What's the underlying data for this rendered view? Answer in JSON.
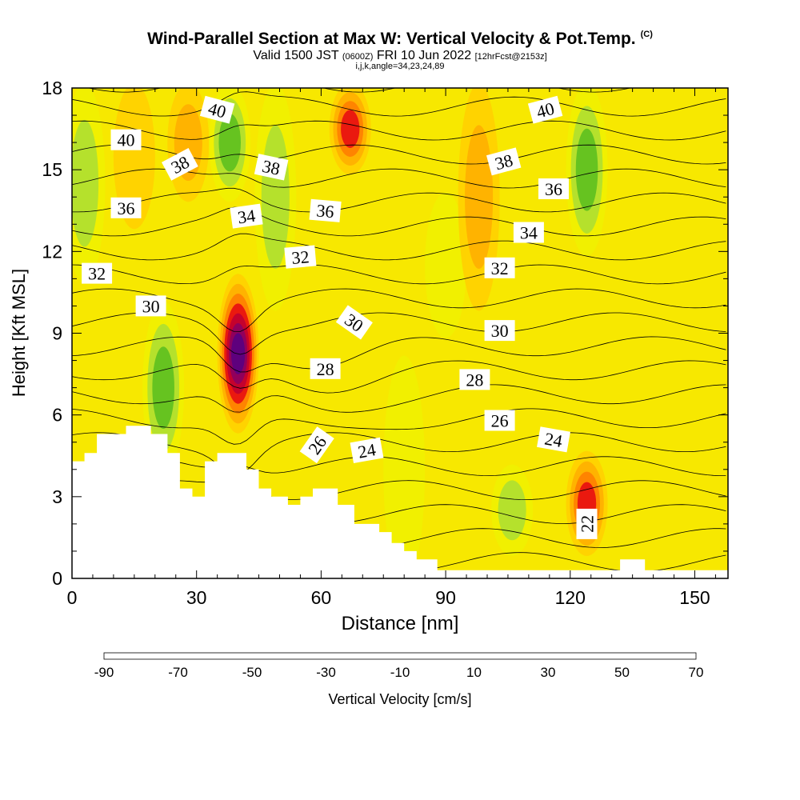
{
  "title": {
    "main": "Wind-Parallel Section at Max W: Vertical Velocity & Pot.Temp.",
    "corner": "(C)",
    "sub_a": "Valid 1500 JST",
    "sub_b": "(0600Z)",
    "sub_c": "FRI 10 Jun 2022",
    "sub_d": "[12hrFcst@2153z]",
    "indices": "i,j,k,angle=34,23,24,89"
  },
  "chart_data": {
    "type": "heatmap",
    "xlabel": "Distance [nm]",
    "ylabel": "Height [Kft MSL]",
    "xlim": [
      0,
      158
    ],
    "ylim": [
      0,
      18
    ],
    "xticks": [
      0,
      30,
      60,
      90,
      120,
      150
    ],
    "yticks": [
      0,
      3,
      6,
      9,
      12,
      15,
      18
    ],
    "colorbar": {
      "label": "Vertical Velocity [cm/s]",
      "ticks": [
        -90,
        -70,
        -50,
        -30,
        -10,
        10,
        30,
        50,
        70
      ],
      "range": [
        -90,
        70
      ],
      "colors": [
        "#0000ff",
        "#0050ff",
        "#00a0ff",
        "#00d8ff",
        "#00f0c0",
        "#00c850",
        "#10a010",
        "#60c020",
        "#b0e030",
        "#f0f000",
        "#ffd000",
        "#ffb000",
        "#ff8000",
        "#ff4000",
        "#e81010",
        "#c00030",
        "#8c0060",
        "#5a0080"
      ]
    },
    "velocity_bands": [
      {
        "x": 3,
        "y0": 11,
        "y1": 18,
        "w": -20
      },
      {
        "x": 15,
        "y0": 13,
        "y1": 18,
        "w": 12
      },
      {
        "x": 22,
        "y0": 4,
        "y1": 10,
        "w": -30
      },
      {
        "x": 28,
        "y0": 14,
        "y1": 18,
        "w": 22
      },
      {
        "x": 38,
        "y0": 14,
        "y1": 18,
        "w": -25
      },
      {
        "x": 40,
        "y0": 5.5,
        "y1": 11,
        "w": 68
      },
      {
        "x": 49,
        "y0": 10,
        "y1": 18,
        "w": -18
      },
      {
        "x": 67,
        "y0": 15,
        "y1": 18,
        "w": 35
      },
      {
        "x": 80,
        "y0": 0,
        "y1": 8,
        "w": -5
      },
      {
        "x": 90,
        "y0": 9,
        "y1": 14,
        "w": -10
      },
      {
        "x": 98,
        "y0": 10,
        "y1": 18,
        "w": 16
      },
      {
        "x": 106,
        "y0": 1,
        "y1": 4,
        "w": -15
      },
      {
        "x": 124,
        "y0": 1,
        "y1": 4.5,
        "w": 40
      },
      {
        "x": 124,
        "y0": 12,
        "y1": 18,
        "w": -30
      }
    ],
    "contour_labels": [
      {
        "text": "40",
        "x": 13,
        "y": 16.1,
        "angle": 0
      },
      {
        "text": "40",
        "x": 35,
        "y": 17.2,
        "angle": 15
      },
      {
        "text": "40",
        "x": 114,
        "y": 17.2,
        "angle": -15
      },
      {
        "text": "38",
        "x": 26,
        "y": 15.2,
        "angle": -28
      },
      {
        "text": "38",
        "x": 48,
        "y": 15.1,
        "angle": 12
      },
      {
        "text": "38",
        "x": 104,
        "y": 15.3,
        "angle": -15
      },
      {
        "text": "36",
        "x": 13,
        "y": 13.6,
        "angle": 0
      },
      {
        "text": "36",
        "x": 61,
        "y": 13.5,
        "angle": 5
      },
      {
        "text": "36",
        "x": 116,
        "y": 14.3,
        "angle": 0
      },
      {
        "text": "34",
        "x": 42,
        "y": 13.3,
        "angle": -8
      },
      {
        "text": "34",
        "x": 110,
        "y": 12.7,
        "angle": 0
      },
      {
        "text": "32",
        "x": 6,
        "y": 11.2,
        "angle": 0
      },
      {
        "text": "32",
        "x": 55,
        "y": 11.8,
        "angle": -5
      },
      {
        "text": "32",
        "x": 103,
        "y": 11.4,
        "angle": 0
      },
      {
        "text": "30",
        "x": 19,
        "y": 10.0,
        "angle": 0
      },
      {
        "text": "30",
        "x": 68,
        "y": 9.4,
        "angle": 35
      },
      {
        "text": "30",
        "x": 103,
        "y": 9.1,
        "angle": 0
      },
      {
        "text": "28",
        "x": 61,
        "y": 7.7,
        "angle": 0
      },
      {
        "text": "28",
        "x": 97,
        "y": 7.3,
        "angle": 0
      },
      {
        "text": "26",
        "x": 59,
        "y": 4.9,
        "angle": -55
      },
      {
        "text": "26",
        "x": 103,
        "y": 5.8,
        "angle": 0
      },
      {
        "text": "24",
        "x": 71,
        "y": 4.7,
        "angle": -10
      },
      {
        "text": "24",
        "x": 116,
        "y": 5.1,
        "angle": 10
      },
      {
        "text": "22",
        "x": 124,
        "y": 2.0,
        "angle": -90
      }
    ],
    "terrain": [
      [
        0,
        4.3
      ],
      [
        3,
        4.3
      ],
      [
        3,
        4.6
      ],
      [
        6,
        4.6
      ],
      [
        6,
        5.3
      ],
      [
        13,
        5.3
      ],
      [
        13,
        5.6
      ],
      [
        19,
        5.6
      ],
      [
        19,
        5.3
      ],
      [
        23,
        5.3
      ],
      [
        23,
        4.6
      ],
      [
        26,
        4.6
      ],
      [
        26,
        3.3
      ],
      [
        29,
        3.3
      ],
      [
        29,
        3.0
      ],
      [
        32,
        3.0
      ],
      [
        32,
        4.3
      ],
      [
        35,
        4.3
      ],
      [
        35,
        4.6
      ],
      [
        42,
        4.6
      ],
      [
        42,
        4.0
      ],
      [
        45,
        4.0
      ],
      [
        45,
        3.3
      ],
      [
        48,
        3.3
      ],
      [
        48,
        3.0
      ],
      [
        52,
        3.0
      ],
      [
        52,
        2.7
      ],
      [
        55,
        2.7
      ],
      [
        55,
        3.0
      ],
      [
        58,
        3.0
      ],
      [
        58,
        3.3
      ],
      [
        64,
        3.3
      ],
      [
        64,
        2.7
      ],
      [
        68,
        2.7
      ],
      [
        68,
        2.0
      ],
      [
        74,
        2.0
      ],
      [
        74,
        1.7
      ],
      [
        77,
        1.7
      ],
      [
        77,
        1.3
      ],
      [
        80,
        1.3
      ],
      [
        80,
        1.0
      ],
      [
        83,
        1.0
      ],
      [
        83,
        0.7
      ],
      [
        88,
        0.7
      ],
      [
        88,
        0.3
      ],
      [
        132,
        0.3
      ],
      [
        132,
        0.7
      ],
      [
        138,
        0.7
      ],
      [
        138,
        0.3
      ],
      [
        158,
        0.3
      ]
    ]
  }
}
